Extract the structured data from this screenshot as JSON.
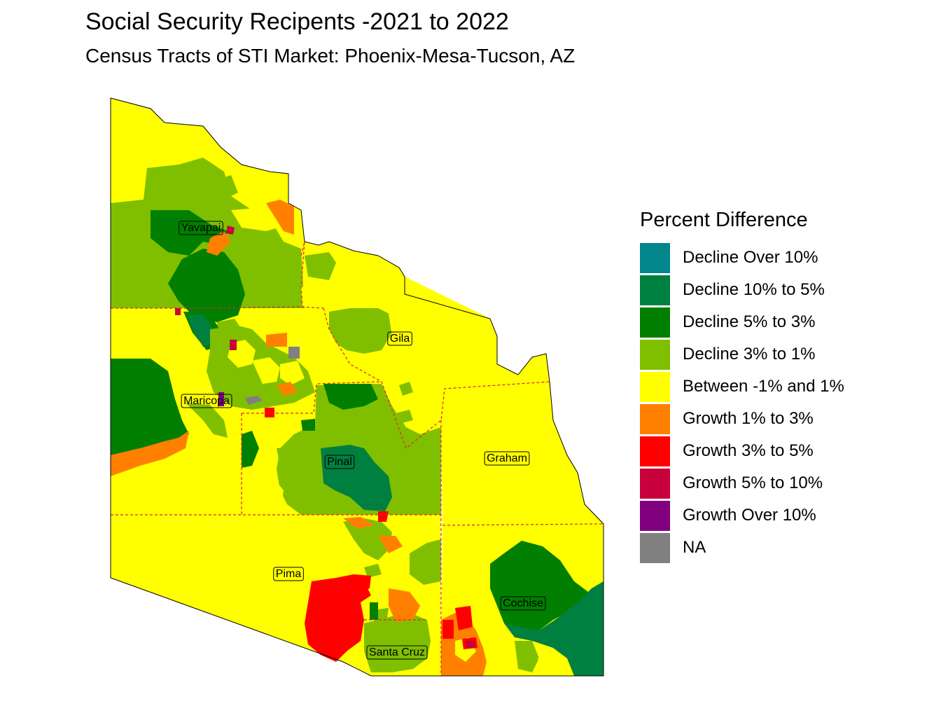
{
  "title": "Social Security Recipents -2021 to 2022",
  "subtitle": "Census Tracts of STI Market: Phoenix-Mesa-Tucson, AZ",
  "legend": {
    "title": "Percent Difference",
    "items": [
      {
        "label": "Decline Over 10%",
        "color": "#00868B"
      },
      {
        "label": "Decline 10% to 5%",
        "color": "#008040"
      },
      {
        "label": "Decline 5% to 3%",
        "color": "#007F00"
      },
      {
        "label": "Decline 3% to 1%",
        "color": "#80BF00"
      },
      {
        "label": "Between -1% and 1%",
        "color": "#FFFF00"
      },
      {
        "label": "Growth 1% to 3%",
        "color": "#FF8000"
      },
      {
        "label": "Growth 3% to 5%",
        "color": "#FF0000"
      },
      {
        "label": "Growth 5% to 10%",
        "color": "#C8003C"
      },
      {
        "label": "Growth Over 10%",
        "color": "#800080"
      },
      {
        "label": "NA",
        "color": "#808080"
      }
    ]
  },
  "counties": [
    {
      "name": "Yavapai",
      "category": "Decline 3% to 1%"
    },
    {
      "name": "Gila",
      "category": "Between -1% and 1%"
    },
    {
      "name": "Maricopa",
      "category": "Between -1% and 1%"
    },
    {
      "name": "Pinal",
      "category": "Decline 3% to 1%"
    },
    {
      "name": "Graham",
      "category": "Between -1% and 1%"
    },
    {
      "name": "Pima",
      "category": "Between -1% and 1%"
    },
    {
      "name": "Cochise",
      "category": "Between -1% and 1%"
    },
    {
      "name": "Santa Cruz",
      "category": "Decline 3% to 1%"
    }
  ],
  "colors": {
    "county_border": "#E0203C",
    "outline": "#000000",
    "label_box_border": "#000000"
  }
}
